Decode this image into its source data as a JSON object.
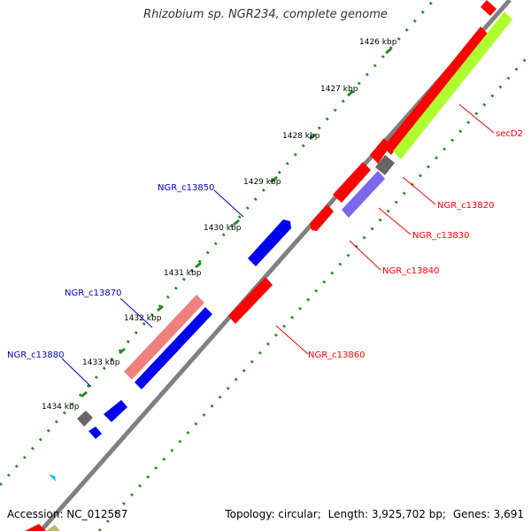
{
  "title": "Rhizobium sp. NGR234, complete genome",
  "footer": {
    "accession": "Accession: NC_012587",
    "topology": "Topology: circular;",
    "length": "Length: 3,925,702 bp;",
    "genes": "Genes: 3,691"
  },
  "scale_ticks": [
    "1426 kbp",
    "1427 kbp",
    "1428 kbp",
    "1429 kbp",
    "1430 kbp",
    "1431 kbp",
    "1432 kbp",
    "1433 kbp",
    "1434 kbp"
  ],
  "gene_labels": [
    {
      "name": "secD2",
      "color": "#ff0000"
    },
    {
      "name": "NGR_c13820",
      "color": "#ff0000"
    },
    {
      "name": "NGR_c13830",
      "color": "#ff0000"
    },
    {
      "name": "NGR_c13840",
      "color": "#ff0000"
    },
    {
      "name": "NGR_c13860",
      "color": "#ff0000"
    },
    {
      "name": "NGR_c13850",
      "color": "#0000cc"
    },
    {
      "name": "NGR_c13870",
      "color": "#0000cc"
    },
    {
      "name": "NGR_c13880",
      "color": "#0000cc"
    }
  ],
  "colors": {
    "backbone": "#808080",
    "tick_dots": "#228b22",
    "forward_cds": "#ff0000",
    "reverse_cds": "#0000ee",
    "rna": "#adff2f",
    "pink_feature": "#f08080",
    "purple_feature": "#7b68ee",
    "gray_feature": "#666666",
    "cyan_marker": "#00bfff"
  }
}
